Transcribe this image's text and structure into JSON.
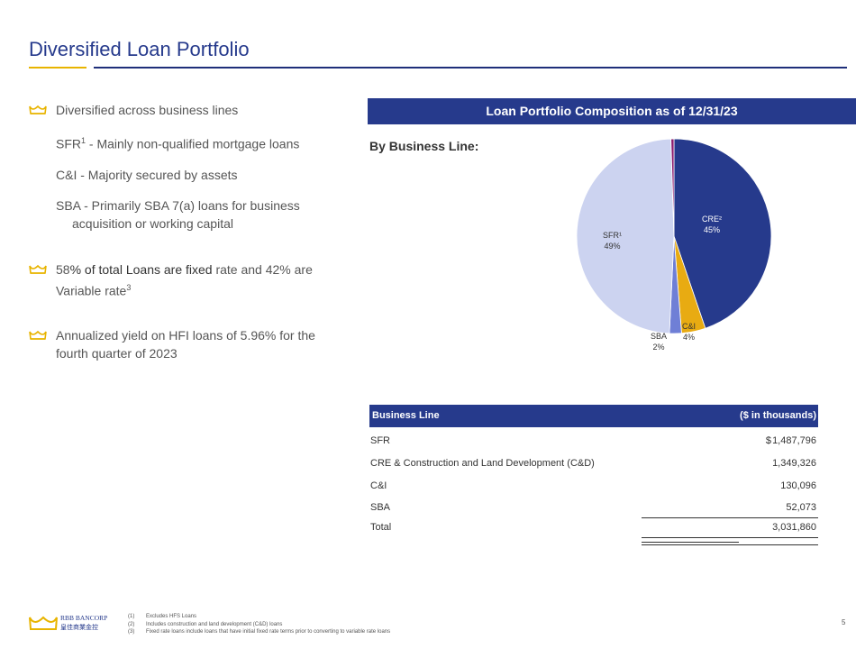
{
  "page_title": "Diversified Loan Portfolio",
  "bullets": {
    "b1": "Diversified across business lines",
    "sfr_a": "SFR",
    "sfr_sup": "1",
    "sfr_b": " - Mainly non-qualified mortgage loans",
    "ci": "C&I - Majority secured by assets",
    "sba_l1": "SBA - Primarily SBA 7(a) loans for business",
    "sba_l2": "acquisition or working capital",
    "b2_a": "58",
    "b2_b": "% of total Loans are fixed",
    "b2_c": " rate and 42% are",
    "b2_d": "Variable rate",
    "b2_sup": "3",
    "b3_l1": "Annualized yield on HFI loans of 5.96% for the",
    "b3_l2": "fourth quarter of 2023"
  },
  "banner": "Loan Portfolio Composition as of 12/31/23",
  "by_line": "By Business Line:",
  "chart_data": {
    "type": "pie",
    "categories": [
      "CRE²",
      "C&I",
      "SBA",
      "SFR¹",
      ""
    ],
    "values": [
      45,
      4,
      2,
      49,
      0.5
    ],
    "labels": [
      {
        "name": "CRE²",
        "pct": "45%"
      },
      {
        "name": "C&I",
        "pct": "4%"
      },
      {
        "name": "SBA",
        "pct": "2%"
      },
      {
        "name": "SFR¹",
        "pct": "49%"
      }
    ],
    "colors": [
      "#263a8c",
      "#e8ab12",
      "#6f7fd6",
      "#ccd3f0",
      "#8a1c6e"
    ]
  },
  "table": {
    "header_left": "Business Line",
    "header_right": "($ in thousands)",
    "currency": "$",
    "rows": [
      {
        "label": "SFR",
        "value": "1,487,796"
      },
      {
        "label": "CRE  & Construction  and Land Development  (C&D)",
        "value": "1,349,326"
      },
      {
        "label": "C&I",
        "value": "130,096"
      },
      {
        "label": "SBA",
        "value": "52,073"
      },
      {
        "label": "Total",
        "value": "3,031,860"
      }
    ]
  },
  "logo": {
    "name": "RBB BANCORP",
    "chinese": "皇佳商業金控"
  },
  "footnotes": [
    {
      "num": "(1)",
      "text": "Excludes HFS Loans"
    },
    {
      "num": "(2)",
      "text": "Includes construction and land development (C&D) loans"
    },
    {
      "num": "(3)",
      "text": "Fixed rate loans include loans that have initial fixed rate terms prior to converting to variable rate loans"
    }
  ],
  "page_number": "5",
  "colors": {
    "navy": "#263a8c",
    "gold": "#e8b400"
  }
}
